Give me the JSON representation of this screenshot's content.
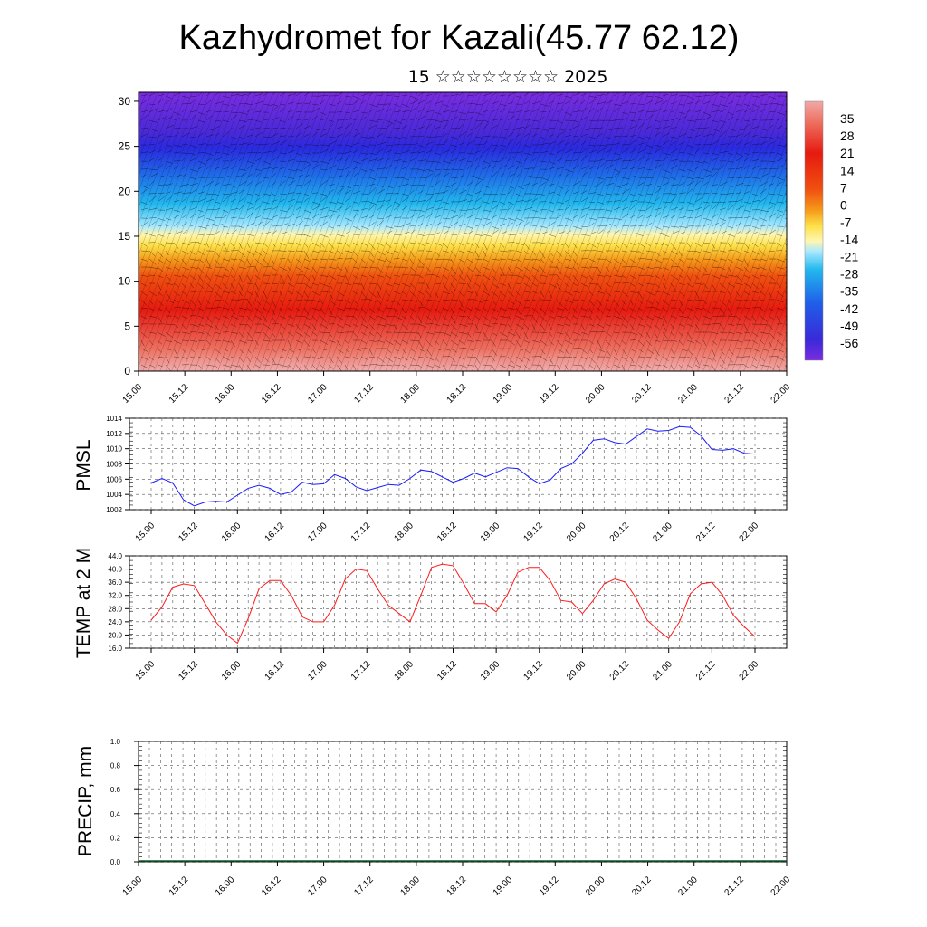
{
  "header": {
    "title": "Kazhydromet for Kazali(45.77 62.12)",
    "date": "15 ☆☆☆☆☆☆☆☆ 2025"
  },
  "time_ticks": [
    "15.00",
    "15.12",
    "16.00",
    "16.12",
    "17.00",
    "17.12",
    "18.00",
    "18.12",
    "19.00",
    "19.12",
    "20.00",
    "20.12",
    "21.00",
    "21.12",
    "22.00"
  ],
  "colors": {
    "pmsl_line": "#1a1aff",
    "temp_line": "#ff1a1a",
    "precip_base": "#0b5a2a"
  },
  "chart_data": [
    {
      "type": "heatmap",
      "name_hint": "cross-section",
      "x": [
        "15.00",
        "15.12",
        "16.00",
        "16.12",
        "17.00",
        "17.12",
        "18.00",
        "18.12",
        "19.00",
        "19.12",
        "20.00",
        "20.12",
        "21.00",
        "21.12",
        "22.00"
      ],
      "ylim": [
        0,
        31
      ],
      "yticks": [
        0,
        5,
        10,
        15,
        20,
        25,
        30
      ],
      "colorbar_labels": [
        "35",
        "28",
        "21",
        "14",
        "7",
        "0",
        "-7",
        "-14",
        "-21",
        "-28",
        "-35",
        "-42",
        "-49",
        "-56"
      ],
      "colorbar_range": [
        -63,
        42
      ],
      "wind_barbs": true
    },
    {
      "type": "line",
      "ylabel": "PMSL",
      "ylim": [
        1002,
        1014
      ],
      "yticks": [
        "1002",
        "1004",
        "1006",
        "1008",
        "1010",
        "1012",
        "1014"
      ],
      "x": [
        0,
        3,
        6,
        9,
        12,
        15,
        18,
        21,
        24,
        27,
        30,
        33,
        36,
        39,
        42,
        45,
        48,
        51,
        54,
        57,
        60,
        63,
        66,
        69,
        72,
        75,
        78,
        81,
        84,
        87,
        90,
        93,
        96,
        99,
        102,
        105,
        108,
        111,
        114,
        117,
        120,
        123,
        126,
        129,
        132,
        135,
        138,
        141,
        144,
        147,
        150,
        153,
        156,
        159,
        162,
        165,
        168
      ],
      "values": [
        1005.5,
        1006.1,
        1005.5,
        1003.3,
        1002.5,
        1003.0,
        1003.1,
        1003.0,
        1003.9,
        1004.8,
        1005.2,
        1004.8,
        1004.0,
        1004.3,
        1005.6,
        1005.3,
        1005.4,
        1006.6,
        1006.1,
        1005.0,
        1004.5,
        1004.9,
        1005.3,
        1005.2,
        1006.1,
        1007.2,
        1007.0,
        1006.3,
        1005.6,
        1006.1,
        1006.8,
        1006.3,
        1006.9,
        1007.5,
        1007.4,
        1006.3,
        1005.4,
        1005.9,
        1007.4,
        1008.0,
        1009.4,
        1011.1,
        1011.3,
        1010.8,
        1010.6,
        1011.6,
        1012.6,
        1012.3,
        1012.4,
        1012.9,
        1012.8,
        1011.7,
        1009.9,
        1009.8,
        1010.0,
        1009.4,
        1009.3
      ]
    },
    {
      "type": "line",
      "ylabel": "TEMP at 2 M",
      "ylim": [
        16,
        44
      ],
      "yticks": [
        "16.0",
        "20.0",
        "24.0",
        "28.0",
        "32.0",
        "36.0",
        "40.0",
        "44.0"
      ],
      "x": [
        0,
        3,
        6,
        9,
        12,
        15,
        18,
        21,
        24,
        27,
        30,
        33,
        36,
        39,
        42,
        45,
        48,
        51,
        54,
        57,
        60,
        63,
        66,
        69,
        72,
        75,
        78,
        81,
        84,
        87,
        90,
        93,
        96,
        99,
        102,
        105,
        108,
        111,
        114,
        117,
        120,
        123,
        126,
        129,
        132,
        135,
        138,
        141,
        144,
        147,
        150,
        153,
        156,
        159,
        162,
        165,
        168
      ],
      "values": [
        24.5,
        28.5,
        34.5,
        35.5,
        35.0,
        29.5,
        24.0,
        20.0,
        17.5,
        25.0,
        34.0,
        36.5,
        36.5,
        32.0,
        25.5,
        24.0,
        24.0,
        29.0,
        37.0,
        40.0,
        39.5,
        34.0,
        29.0,
        26.5,
        24.0,
        32.0,
        40.5,
        41.5,
        41.0,
        35.5,
        29.5,
        29.5,
        27.0,
        32.0,
        39.0,
        40.5,
        40.5,
        36.5,
        30.5,
        30.0,
        26.5,
        30.5,
        35.5,
        37.0,
        36.0,
        31.0,
        24.5,
        21.5,
        19.0,
        24.0,
        32.5,
        35.5,
        36.0,
        32.0,
        26.0,
        22.5,
        19.5
      ]
    },
    {
      "type": "bar",
      "ylabel": "PRECIP, mm",
      "ylim": [
        0,
        1
      ],
      "yticks": [
        "0.0",
        "0.2",
        "0.4",
        "0.6",
        "0.8",
        "1.0"
      ],
      "values": [
        0,
        0,
        0,
        0,
        0,
        0,
        0,
        0,
        0,
        0,
        0,
        0,
        0,
        0,
        0,
        0,
        0,
        0,
        0,
        0,
        0,
        0,
        0,
        0,
        0,
        0,
        0,
        0,
        0,
        0,
        0,
        0,
        0,
        0,
        0,
        0,
        0,
        0,
        0,
        0,
        0,
        0,
        0,
        0,
        0,
        0,
        0,
        0,
        0,
        0,
        0,
        0,
        0,
        0,
        0,
        0,
        0
      ]
    }
  ]
}
